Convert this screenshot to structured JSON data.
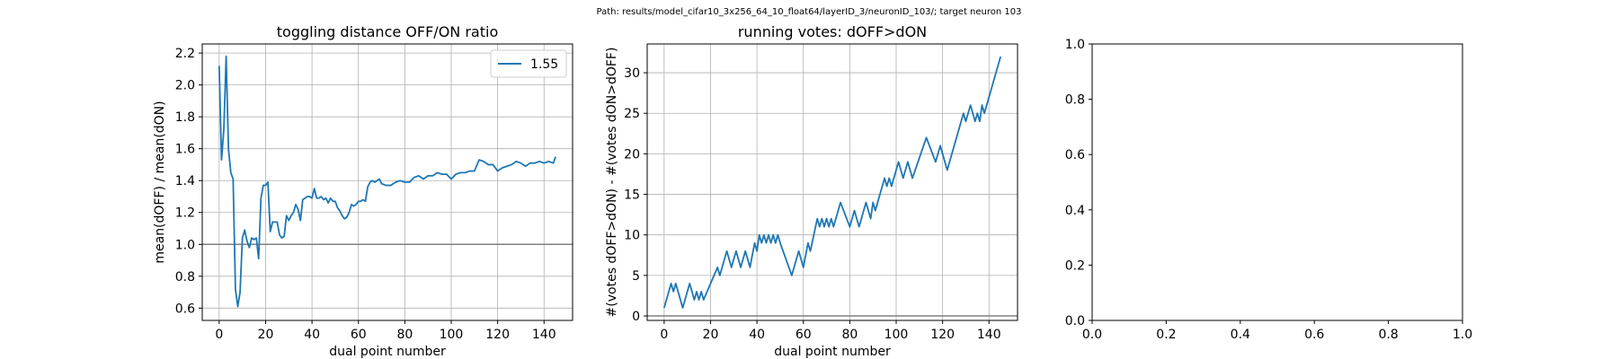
{
  "suptitle": "Path: results/model_cifar10_3x256_64_10_float64/layerID_3/neuronID_103/; target neuron 103",
  "chart_data": [
    {
      "type": "line",
      "title": "toggling distance OFF/ON ratio",
      "xlabel": "dual point number",
      "ylabel": "mean(dOFF) / mean(dON)",
      "xlim": [
        -7.3,
        152.3
      ],
      "ylim": [
        0.523,
        2.257
      ],
      "xticks": [
        0,
        20,
        40,
        60,
        80,
        100,
        120,
        140
      ],
      "yticks": [
        0.6,
        0.8,
        1.0,
        1.2,
        1.4,
        1.6,
        1.8,
        2.0,
        2.2
      ],
      "ytick_labels": [
        "0.6",
        "0.8",
        "1.0",
        "1.2",
        "1.4",
        "1.6",
        "1.8",
        "2.0",
        "2.2"
      ],
      "grid": true,
      "legend": "top-right",
      "hline": 1.0,
      "series": [
        {
          "name": "1.55",
          "color": "#1f77b4",
          "points": [
            [
              0,
              2.12
            ],
            [
              1,
              1.53
            ],
            [
              2,
              1.72
            ],
            [
              3,
              2.18
            ],
            [
              4,
              1.6
            ],
            [
              5,
              1.45
            ],
            [
              6,
              1.41
            ],
            [
              7,
              0.72
            ],
            [
              8,
              0.61
            ],
            [
              9,
              0.7
            ],
            [
              10,
              1.04
            ],
            [
              11,
              1.09
            ],
            [
              12,
              1.02
            ],
            [
              13,
              0.98
            ],
            [
              14,
              1.04
            ],
            [
              15,
              1.03
            ],
            [
              16,
              1.04
            ],
            [
              17,
              0.91
            ],
            [
              18,
              1.29
            ],
            [
              19,
              1.37
            ],
            [
              20,
              1.37
            ],
            [
              21,
              1.39
            ],
            [
              22,
              1.08
            ],
            [
              23,
              1.14
            ],
            [
              24,
              1.14
            ],
            [
              25,
              1.14
            ],
            [
              26,
              1.06
            ],
            [
              27,
              1.04
            ],
            [
              28,
              1.05
            ],
            [
              29,
              1.18
            ],
            [
              30,
              1.15
            ],
            [
              31,
              1.18
            ],
            [
              32,
              1.2
            ],
            [
              33,
              1.25
            ],
            [
              34,
              1.22
            ],
            [
              35,
              1.15
            ],
            [
              36,
              1.28
            ],
            [
              37,
              1.29
            ],
            [
              38,
              1.3
            ],
            [
              39,
              1.3
            ],
            [
              40,
              1.29
            ],
            [
              41,
              1.35
            ],
            [
              42,
              1.29
            ],
            [
              43,
              1.29
            ],
            [
              44,
              1.3
            ],
            [
              45,
              1.28
            ],
            [
              46,
              1.29
            ],
            [
              47,
              1.26
            ],
            [
              48,
              1.29
            ],
            [
              49,
              1.27
            ],
            [
              50,
              1.27
            ],
            [
              51,
              1.23
            ],
            [
              52,
              1.21
            ],
            [
              53,
              1.18
            ],
            [
              54,
              1.16
            ],
            [
              55,
              1.17
            ],
            [
              56,
              1.2
            ],
            [
              57,
              1.25
            ],
            [
              58,
              1.24
            ],
            [
              59,
              1.25
            ],
            [
              60,
              1.27
            ],
            [
              61,
              1.27
            ],
            [
              62,
              1.28
            ],
            [
              63,
              1.27
            ],
            [
              64,
              1.36
            ],
            [
              65,
              1.39
            ],
            [
              66,
              1.4
            ],
            [
              67,
              1.39
            ],
            [
              68,
              1.4
            ],
            [
              69,
              1.41
            ],
            [
              70,
              1.38
            ],
            [
              72,
              1.37
            ],
            [
              74,
              1.37
            ],
            [
              76,
              1.39
            ],
            [
              78,
              1.4
            ],
            [
              80,
              1.39
            ],
            [
              82,
              1.39
            ],
            [
              84,
              1.42
            ],
            [
              86,
              1.43
            ],
            [
              88,
              1.41
            ],
            [
              90,
              1.43
            ],
            [
              92,
              1.43
            ],
            [
              94,
              1.45
            ],
            [
              96,
              1.44
            ],
            [
              98,
              1.44
            ],
            [
              100,
              1.41
            ],
            [
              102,
              1.44
            ],
            [
              104,
              1.45
            ],
            [
              106,
              1.45
            ],
            [
              108,
              1.46
            ],
            [
              110,
              1.46
            ],
            [
              112,
              1.53
            ],
            [
              114,
              1.52
            ],
            [
              116,
              1.5
            ],
            [
              118,
              1.5
            ],
            [
              120,
              1.46
            ],
            [
              122,
              1.48
            ],
            [
              124,
              1.49
            ],
            [
              126,
              1.5
            ],
            [
              128,
              1.52
            ],
            [
              130,
              1.51
            ],
            [
              132,
              1.49
            ],
            [
              134,
              1.51
            ],
            [
              136,
              1.51
            ],
            [
              138,
              1.52
            ],
            [
              140,
              1.51
            ],
            [
              142,
              1.52
            ],
            [
              144,
              1.51
            ],
            [
              145,
              1.55
            ]
          ]
        }
      ]
    },
    {
      "type": "line",
      "title": "running votes: dOFF>dON",
      "xlabel": "dual point number",
      "ylabel": "#(votes dOFF>dON) - #(votes dON>dOFF)",
      "xlim": [
        -7.3,
        152.3
      ],
      "ylim": [
        -0.55,
        33.55
      ],
      "xticks": [
        0,
        20,
        40,
        60,
        80,
        100,
        120,
        140
      ],
      "yticks": [
        0,
        5,
        10,
        15,
        20,
        25,
        30
      ],
      "ytick_labels": [
        "0",
        "5",
        "10",
        "15",
        "20",
        "25",
        "30"
      ],
      "grid": true,
      "hline": 0,
      "series": [
        {
          "color": "#1f77b4",
          "points": [
            [
              0,
              1
            ],
            [
              3,
              4
            ],
            [
              4,
              3
            ],
            [
              5,
              4
            ],
            [
              8,
              1
            ],
            [
              11,
              4
            ],
            [
              13,
              2
            ],
            [
              14,
              3
            ],
            [
              15,
              2
            ],
            [
              16,
              3
            ],
            [
              17,
              2
            ],
            [
              23,
              6
            ],
            [
              24,
              5
            ],
            [
              27,
              8
            ],
            [
              29,
              6
            ],
            [
              31,
              8
            ],
            [
              33,
              6
            ],
            [
              35,
              8
            ],
            [
              37,
              6
            ],
            [
              39,
              9
            ],
            [
              40,
              8
            ],
            [
              41,
              10
            ],
            [
              42,
              9
            ],
            [
              43,
              10
            ],
            [
              44,
              9
            ],
            [
              45,
              10
            ],
            [
              46,
              9
            ],
            [
              47,
              10
            ],
            [
              48,
              9
            ],
            [
              49,
              10
            ],
            [
              50,
              9
            ],
            [
              55,
              5
            ],
            [
              58,
              8
            ],
            [
              60,
              6
            ],
            [
              62,
              9
            ],
            [
              63,
              8
            ],
            [
              66,
              12
            ],
            [
              67,
              11
            ],
            [
              68,
              12
            ],
            [
              69,
              11
            ],
            [
              70,
              12
            ],
            [
              71,
              11
            ],
            [
              72,
              12
            ],
            [
              73,
              11
            ],
            [
              76,
              14
            ],
            [
              80,
              11
            ],
            [
              82,
              13
            ],
            [
              84,
              11
            ],
            [
              87,
              14
            ],
            [
              89,
              12
            ],
            [
              90,
              14
            ],
            [
              91,
              13
            ],
            [
              95,
              17
            ],
            [
              96,
              16
            ],
            [
              97,
              17
            ],
            [
              98,
              16
            ],
            [
              101,
              19
            ],
            [
              103,
              17
            ],
            [
              105,
              19
            ],
            [
              107,
              17
            ],
            [
              113,
              22
            ],
            [
              117,
              19
            ],
            [
              119,
              21
            ],
            [
              122,
              18
            ],
            [
              129,
              25
            ],
            [
              130,
              24
            ],
            [
              132,
              26
            ],
            [
              134,
              24
            ],
            [
              135,
              25
            ],
            [
              136,
              24
            ],
            [
              137,
              26
            ],
            [
              138,
              25
            ],
            [
              145,
              32
            ]
          ]
        }
      ]
    },
    {
      "type": "line",
      "title": "",
      "xlabel": "",
      "ylabel": "",
      "xlim": [
        0,
        1
      ],
      "ylim": [
        0,
        1
      ],
      "xticks": [
        0.0,
        0.2,
        0.4,
        0.6,
        0.8,
        1.0
      ],
      "xtick_labels": [
        "0.0",
        "0.2",
        "0.4",
        "0.6",
        "0.8",
        "1.0"
      ],
      "yticks": [
        0.0,
        0.2,
        0.4,
        0.6,
        0.8,
        1.0
      ],
      "ytick_labels": [
        "0.0",
        "0.2",
        "0.4",
        "0.6",
        "0.8",
        "1.0"
      ],
      "grid": false,
      "series": []
    }
  ]
}
